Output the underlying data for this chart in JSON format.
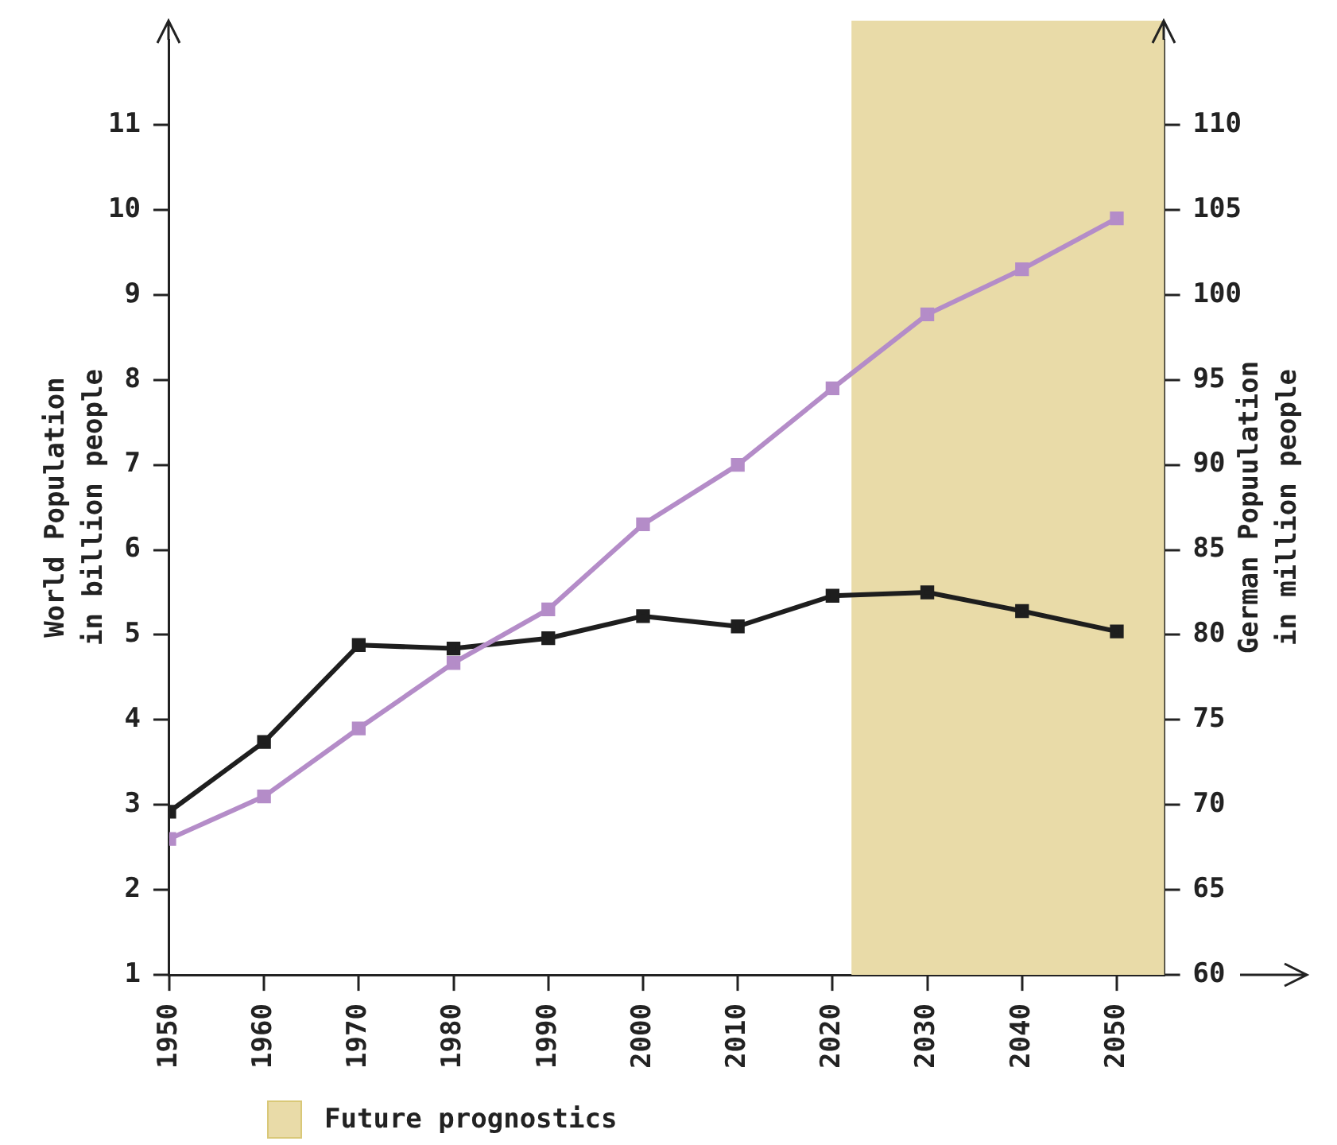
{
  "chart_data": {
    "type": "line",
    "x": [
      1950,
      1960,
      1970,
      1980,
      1990,
      2000,
      2010,
      2020,
      2030,
      2040,
      2050
    ],
    "series": [
      {
        "color": "#b48cc8",
        "values": [
          2.6,
          3.1,
          3.9,
          4.67,
          5.3,
          6.3,
          7.0,
          7.9,
          8.77,
          9.3,
          9.9
        ]
      },
      {
        "color": "#1e1e1e",
        "axis": "y2",
        "values": [
          69.6,
          73.7,
          79.4,
          79.2,
          79.8,
          81.1,
          80.5,
          82.3,
          82.5,
          81.4,
          80.2
        ]
      }
    ],
    "xlim": [
      1950,
      2055
    ],
    "xticks": [
      1950,
      1960,
      1970,
      1980,
      1990,
      2000,
      2010,
      2020,
      2030,
      2040,
      2050
    ],
    "ylim": [
      1,
      12
    ],
    "yticks": [
      1,
      2,
      3,
      4,
      5,
      6,
      7,
      8,
      9,
      10,
      11
    ],
    "y2lim": [
      60,
      115
    ],
    "y2ticks": [
      60,
      65,
      70,
      75,
      80,
      85,
      90,
      95,
      100,
      105,
      110
    ],
    "ylabel": "World Population\nin billion people",
    "y2label": "German Popuulation\nin million people",
    "bands": [
      {
        "axis": "x",
        "from": 2022,
        "to": 2055,
        "label": "Future prognostics",
        "color": "#e9dba8"
      }
    ],
    "legend": "bottom",
    "grid": false,
    "marker": "square",
    "line_style": "solid"
  }
}
